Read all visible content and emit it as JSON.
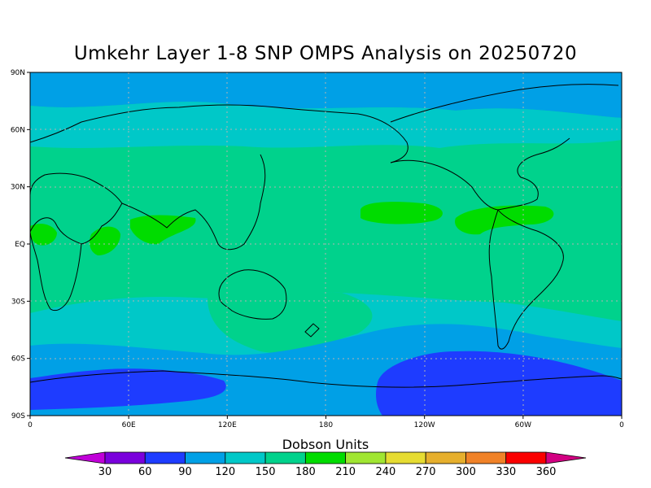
{
  "title": "Umkehr Layer 1-8 SNP OMPS Analysis on 20250720",
  "colorbar": {
    "title": "Dobson Units",
    "labels": [
      "30",
      "60",
      "90",
      "120",
      "150",
      "180",
      "210",
      "240",
      "270",
      "300",
      "330",
      "360"
    ],
    "colors": [
      "#c000d8",
      "#7a00dc",
      "#1e3cff",
      "#00a0e6",
      "#00c8c8",
      "#00d28c",
      "#00dc00",
      "#a0e632",
      "#e6dc32",
      "#e6af2d",
      "#f08228",
      "#fa0000",
      "#d20082"
    ]
  },
  "map": {
    "y_ticks": [
      {
        "label": "90N",
        "lat": 90
      },
      {
        "label": "60N",
        "lat": 60
      },
      {
        "label": "30N",
        "lat": 30
      },
      {
        "label": "EQ",
        "lat": 0
      },
      {
        "label": "30S",
        "lat": -30
      },
      {
        "label": "60S",
        "lat": -60
      },
      {
        "label": "90S",
        "lat": -90
      }
    ],
    "x_ticks": [
      {
        "label": "0",
        "lon": 0
      },
      {
        "label": "60E",
        "lon": 60
      },
      {
        "label": "120E",
        "lon": 120
      },
      {
        "label": "180",
        "lon": 180
      },
      {
        "label": "120W",
        "lon": 240
      },
      {
        "label": "60W",
        "lon": 300
      },
      {
        "label": "0",
        "lon": 360
      }
    ],
    "lon_range": [
      0,
      360
    ],
    "lat_range": [
      -90,
      90
    ],
    "grid": true,
    "zonal_bands_DU": [
      {
        "lat_from": 90,
        "lat_to": 68,
        "level_DU": 120
      },
      {
        "lat_from": 68,
        "lat_to": 45,
        "level_DU": 150
      },
      {
        "lat_from": 45,
        "lat_to": -30,
        "level_DU": 180
      },
      {
        "lat_from": -30,
        "lat_to": -45,
        "level_DU": 150
      },
      {
        "lat_from": -45,
        "lat_to": -60,
        "level_DU": 120
      },
      {
        "lat_from": -60,
        "lat_to": -90,
        "level_DU": 90
      }
    ]
  }
}
